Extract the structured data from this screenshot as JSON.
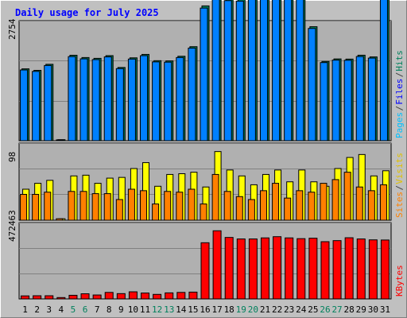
{
  "chart_data": {
    "type": "bar",
    "title": "Daily usage for July 2025",
    "title_color": "#0000ff",
    "background": "#c0c0c0",
    "panel_background": "#b0b0b0",
    "gridlines": true,
    "categories": [
      "1",
      "2",
      "3",
      "4",
      "5",
      "6",
      "7",
      "8",
      "9",
      "10",
      "11",
      "12",
      "13",
      "14",
      "15",
      "16",
      "17",
      "18",
      "19",
      "20",
      "21",
      "22",
      "23",
      "24",
      "25",
      "26",
      "27",
      "28",
      "29",
      "30",
      "31"
    ],
    "weekend_days": [
      "5",
      "6",
      "12",
      "13",
      "19",
      "20",
      "26",
      "27"
    ],
    "weekend_label_color": "#00805c",
    "weekday_label_color": "#000000",
    "panels": [
      {
        "ytick": "2754",
        "ymax": 2754,
        "series": [
          {
            "name": "Pages",
            "color": "#00c0ff",
            "values": [
              35,
              35,
              36,
              0,
              40,
              39,
              39,
              40,
              36,
              39,
              41,
              38,
              38,
              42,
              44,
              63,
              70,
              66,
              66,
              68,
              68,
              69,
              68,
              67,
              54,
              37,
              38,
              38,
              40,
              39,
              69
            ]
          },
          {
            "name": "Files",
            "color": "#0080ff",
            "values": [
              1690,
              1656,
              1797,
              20,
              2009,
              1956,
              1938,
              2003,
              1723,
              1951,
              2032,
              1883,
              1877,
              1987,
              2213,
              3169,
              3487,
              3347,
              3335,
              3419,
              3398,
              3512,
              3468,
              3410,
              2683,
              1867,
              1926,
              1922,
              2011,
              1974,
              3437
            ]
          },
          {
            "name": "Hits",
            "color": "#00805c",
            "values": [
              1717,
              1681,
              1826,
              25,
              2042,
              1987,
              1968,
              2033,
              1750,
              1980,
              2062,
              1912,
              1907,
              2018,
              2247,
              3221,
              3544,
              3398,
              3386,
              3471,
              3449,
              3567,
              3523,
              3462,
              2724,
              1894,
              1954,
              1950,
              2043,
              2002,
              3493
            ]
          }
        ],
        "legend_colors": [
          "#00c0ff",
          "#0000ff",
          "#00805c"
        ]
      },
      {
        "ytick": "98",
        "ymax": 98,
        "series": [
          {
            "name": "Sites",
            "color": "#ff8000",
            "values": [
              35,
              35,
              38,
              2,
              39,
              39,
              36,
              36,
              28,
              42,
              40,
              22,
              39,
              38,
              42,
              22,
              62,
              39,
              32,
              28,
              40,
              50,
              30,
              40,
              38,
              50,
              55,
              65,
              45,
              40,
              48
            ]
          },
          {
            "name": "Visits",
            "color": "#ffff00",
            "values": [
              42,
              50,
              54,
              2,
              60,
              61,
              50,
              57,
              58,
              70,
              78,
              46,
              62,
              63,
              65,
              45,
              93,
              68,
              60,
              48,
              62,
              68,
              52,
              68,
              52,
              46,
              70,
              85,
              89,
              60,
              67
            ]
          }
        ],
        "legend_colors": [
          "#ff8000",
          "#606060",
          "#ffff00"
        ]
      },
      {
        "ytick": "472463",
        "ymax": 472463,
        "series": [
          {
            "name": "KBytes",
            "color": "#ff0000",
            "values": [
              20000,
              21000,
              21000,
              9000,
              24000,
              34000,
              26000,
              43000,
              35000,
              47000,
              39000,
              30000,
              40000,
              43000,
              45000,
              371000,
              450000,
              406000,
              396000,
              396000,
              403000,
              411000,
              403000,
              398000,
              401000,
              378000,
              385000,
              404000,
              396000,
              390000,
              389000
            ]
          }
        ],
        "legend_colors": [
          "#ff0000"
        ]
      }
    ],
    "legend_separator": "/"
  }
}
